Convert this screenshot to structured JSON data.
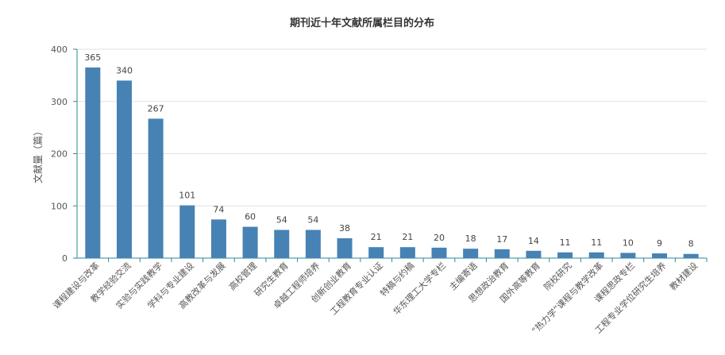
{
  "chart_data": {
    "type": "bar",
    "title": "期刊近十年文献所属栏目的分布",
    "xlabel": "",
    "ylabel": "文献量（篇）",
    "ylim": [
      0,
      400
    ],
    "yticks": [
      0,
      100,
      200,
      300,
      400
    ],
    "grid": true,
    "categories": [
      "课程建设与改革",
      "教学经验交流",
      "实验与实践教学",
      "学科与专业建设",
      "高教改革与发展",
      "高校管理",
      "研究生教育",
      "卓越工程师培养",
      "创新创业教育",
      "工程教育专业认证",
      "特稿与约稿",
      "华东理工大学专栏",
      "主编寄语",
      "思想政治教育",
      "国外高等教育",
      "院校研究",
      "“热力学”课程与教学改革",
      "课程思政专栏",
      "工程专业学位研究生培养",
      "教材建设"
    ],
    "values": [
      365,
      340,
      267,
      101,
      74,
      60,
      54,
      54,
      38,
      21,
      21,
      20,
      18,
      17,
      14,
      11,
      11,
      10,
      9,
      8
    ],
    "colors": {
      "bar": "#4682b4",
      "axis": "#2a8a9a",
      "grid": "#e2e2e2"
    }
  }
}
